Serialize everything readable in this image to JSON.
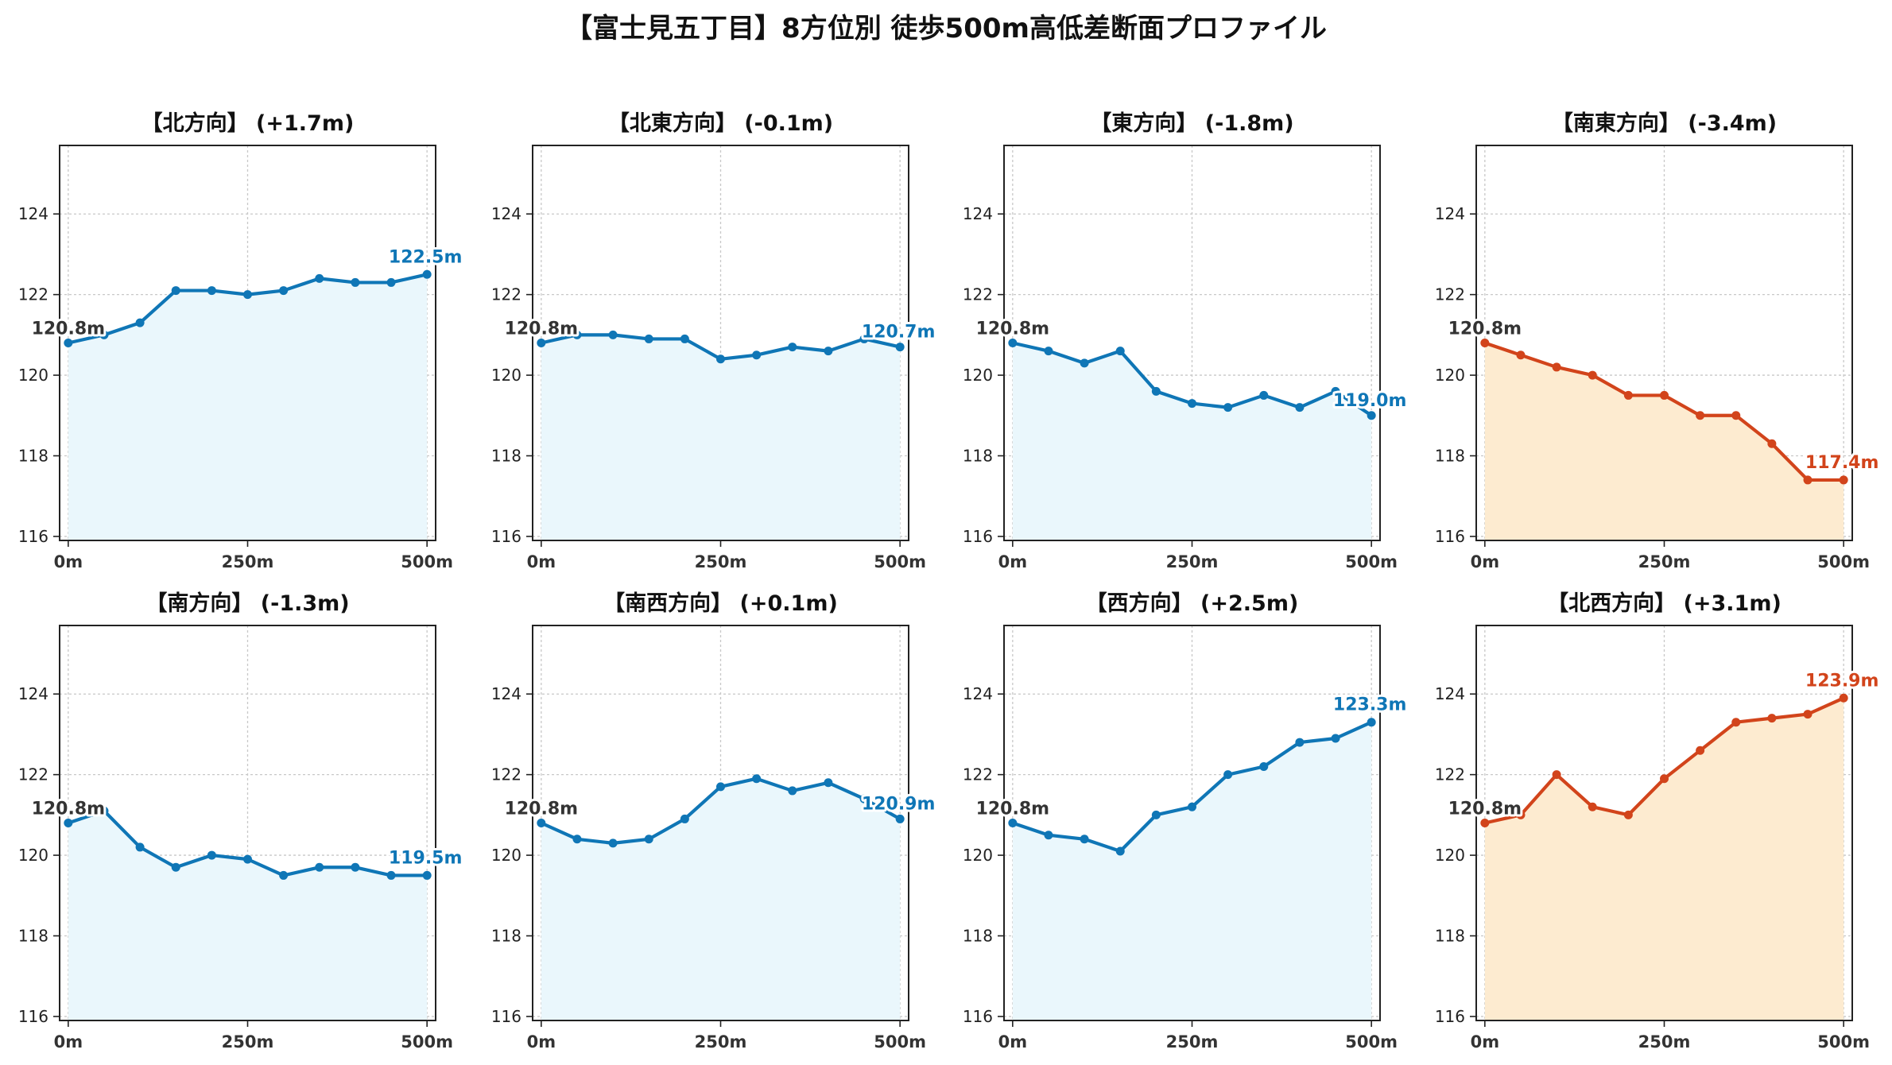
{
  "page_title": "【富士見五丁目】8方位別 徒歩500m高低差断面プロファイル",
  "chart_data": [
    {
      "type": "area",
      "title": "【北方向】 (+1.7m)",
      "color": "#0f76b6",
      "fill": "#eaf7fc",
      "x": [
        0,
        50,
        100,
        150,
        200,
        250,
        300,
        350,
        400,
        450,
        500
      ],
      "values": [
        120.8,
        121.0,
        121.3,
        122.1,
        122.1,
        122.0,
        122.1,
        122.4,
        122.3,
        122.3,
        122.5
      ],
      "start_label": "120.8m",
      "end_label": "122.5m",
      "xticks": [
        "0m",
        "250m",
        "500m"
      ],
      "yticks": [
        "116",
        "118",
        "120",
        "122",
        "124"
      ],
      "ylim": [
        115.9,
        125.7
      ],
      "xlim": [
        -12,
        512
      ],
      "grid": true
    },
    {
      "type": "area",
      "title": "【北東方向】 (-0.1m)",
      "color": "#0f76b6",
      "fill": "#eaf7fc",
      "x": [
        0,
        50,
        100,
        150,
        200,
        250,
        300,
        350,
        400,
        450,
        500
      ],
      "values": [
        120.8,
        121.0,
        121.0,
        120.9,
        120.9,
        120.4,
        120.5,
        120.7,
        120.6,
        120.9,
        120.7
      ],
      "start_label": "120.8m",
      "end_label": "120.7m",
      "xticks": [
        "0m",
        "250m",
        "500m"
      ],
      "yticks": [
        "116",
        "118",
        "120",
        "122",
        "124"
      ],
      "ylim": [
        115.9,
        125.7
      ],
      "xlim": [
        -12,
        512
      ],
      "grid": true
    },
    {
      "type": "area",
      "title": "【東方向】 (-1.8m)",
      "color": "#0f76b6",
      "fill": "#eaf7fc",
      "x": [
        0,
        50,
        100,
        150,
        200,
        250,
        300,
        350,
        400,
        450,
        500
      ],
      "values": [
        120.8,
        120.6,
        120.3,
        120.6,
        119.6,
        119.3,
        119.2,
        119.5,
        119.2,
        119.6,
        119.0
      ],
      "start_label": "120.8m",
      "end_label": "119.0m",
      "xticks": [
        "0m",
        "250m",
        "500m"
      ],
      "yticks": [
        "116",
        "118",
        "120",
        "122",
        "124"
      ],
      "ylim": [
        115.9,
        125.7
      ],
      "xlim": [
        -12,
        512
      ],
      "grid": true
    },
    {
      "type": "area",
      "title": "【南東方向】 (-3.4m)",
      "color": "#d2441b",
      "fill": "#fdebd0",
      "x": [
        0,
        50,
        100,
        150,
        200,
        250,
        300,
        350,
        400,
        450,
        500
      ],
      "values": [
        120.8,
        120.5,
        120.2,
        120.0,
        119.5,
        119.5,
        119.0,
        119.0,
        118.3,
        117.4,
        117.4
      ],
      "start_label": "120.8m",
      "end_label": "117.4m",
      "xticks": [
        "0m",
        "250m",
        "500m"
      ],
      "yticks": [
        "116",
        "118",
        "120",
        "122",
        "124"
      ],
      "ylim": [
        115.9,
        125.7
      ],
      "xlim": [
        -12,
        512
      ],
      "grid": true
    },
    {
      "type": "area",
      "title": "【南方向】 (-1.3m)",
      "color": "#0f76b6",
      "fill": "#eaf7fc",
      "x": [
        0,
        50,
        100,
        150,
        200,
        250,
        300,
        350,
        400,
        450,
        500
      ],
      "values": [
        120.8,
        121.1,
        120.2,
        119.7,
        120.0,
        119.9,
        119.5,
        119.7,
        119.7,
        119.5,
        119.5
      ],
      "start_label": "120.8m",
      "end_label": "119.5m",
      "xticks": [
        "0m",
        "250m",
        "500m"
      ],
      "yticks": [
        "116",
        "118",
        "120",
        "122",
        "124"
      ],
      "ylim": [
        115.9,
        125.7
      ],
      "xlim": [
        -12,
        512
      ],
      "grid": true
    },
    {
      "type": "area",
      "title": "【南西方向】 (+0.1m)",
      "color": "#0f76b6",
      "fill": "#eaf7fc",
      "x": [
        0,
        50,
        100,
        150,
        200,
        250,
        300,
        350,
        400,
        450,
        500
      ],
      "values": [
        120.8,
        120.4,
        120.3,
        120.4,
        120.9,
        121.7,
        121.9,
        121.6,
        121.8,
        121.4,
        120.9
      ],
      "start_label": "120.8m",
      "end_label": "120.9m",
      "xticks": [
        "0m",
        "250m",
        "500m"
      ],
      "yticks": [
        "116",
        "118",
        "120",
        "122",
        "124"
      ],
      "ylim": [
        115.9,
        125.7
      ],
      "xlim": [
        -12,
        512
      ],
      "grid": true
    },
    {
      "type": "area",
      "title": "【西方向】 (+2.5m)",
      "color": "#0f76b6",
      "fill": "#eaf7fc",
      "x": [
        0,
        50,
        100,
        150,
        200,
        250,
        300,
        350,
        400,
        450,
        500
      ],
      "values": [
        120.8,
        120.5,
        120.4,
        120.1,
        121.0,
        121.2,
        122.0,
        122.2,
        122.8,
        122.9,
        123.3
      ],
      "start_label": "120.8m",
      "end_label": "123.3m",
      "xticks": [
        "0m",
        "250m",
        "500m"
      ],
      "yticks": [
        "116",
        "118",
        "120",
        "122",
        "124"
      ],
      "ylim": [
        115.9,
        125.7
      ],
      "xlim": [
        -12,
        512
      ],
      "grid": true
    },
    {
      "type": "area",
      "title": "【北西方向】 (+3.1m)",
      "color": "#d2441b",
      "fill": "#fdebd0",
      "x": [
        0,
        50,
        100,
        150,
        200,
        250,
        300,
        350,
        400,
        450,
        500
      ],
      "values": [
        120.8,
        121.0,
        122.0,
        121.2,
        121.0,
        121.9,
        122.6,
        123.3,
        123.4,
        123.5,
        123.9
      ],
      "start_label": "120.8m",
      "end_label": "123.9m",
      "xticks": [
        "0m",
        "250m",
        "500m"
      ],
      "yticks": [
        "116",
        "118",
        "120",
        "122",
        "124"
      ],
      "ylim": [
        115.9,
        125.7
      ],
      "xlim": [
        -12,
        512
      ],
      "grid": true
    }
  ]
}
